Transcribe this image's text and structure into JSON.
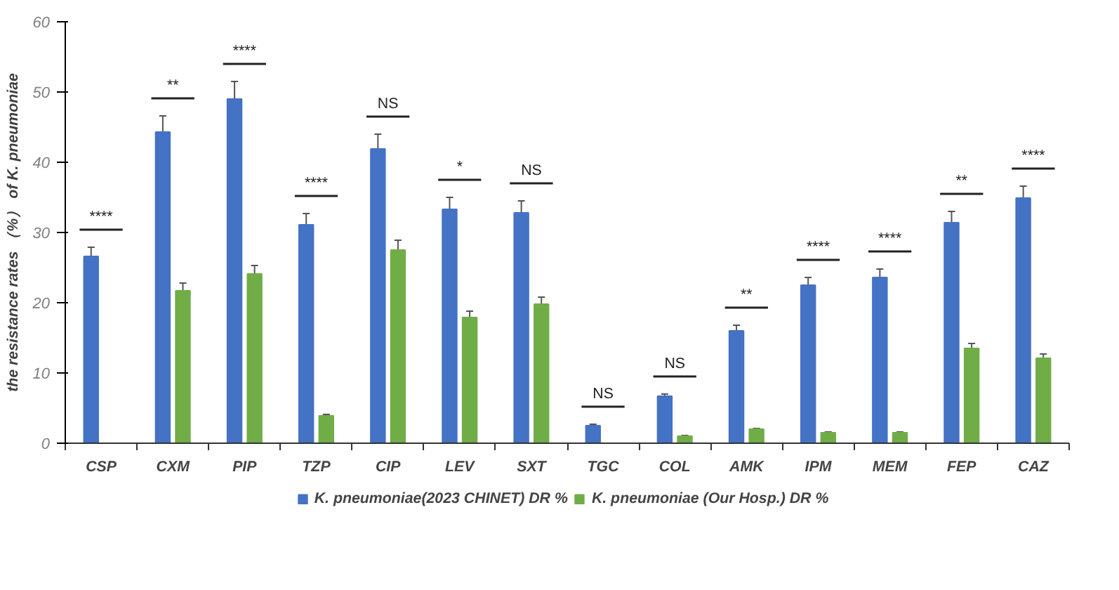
{
  "chart_data": {
    "type": "bar",
    "ylabel": "the resistance rates （%） of K. pneumoniae",
    "categories": [
      "CSP",
      "CXM",
      "PIP",
      "TZP",
      "CIP",
      "LEV",
      "SXT",
      "TGC",
      "COL",
      "AMK",
      "IPM",
      "MEM",
      "FEP",
      "CAZ"
    ],
    "series": [
      {
        "name": "K. pneumoniae(2023 CHINET) DR %",
        "color": "#4472c4",
        "values": [
          26.6,
          44.3,
          49.0,
          31.1,
          41.9,
          33.3,
          32.8,
          2.5,
          6.7,
          16.0,
          22.5,
          23.6,
          31.4,
          34.9
        ],
        "errors": [
          1.3,
          2.3,
          2.5,
          1.6,
          2.1,
          1.7,
          1.7,
          0.2,
          0.3,
          0.8,
          1.1,
          1.2,
          1.6,
          1.7
        ]
      },
      {
        "name": "K. pneumoniae (Our Hosp.) DR %",
        "color": "#70ad47",
        "values": [
          null,
          21.7,
          24.1,
          3.9,
          27.5,
          17.9,
          19.8,
          null,
          1.0,
          2.0,
          1.5,
          1.5,
          13.5,
          12.1
        ],
        "errors": [
          null,
          1.1,
          1.2,
          0.2,
          1.4,
          0.9,
          1.0,
          null,
          0.1,
          0.1,
          0.1,
          0.1,
          0.7,
          0.6
        ]
      }
    ],
    "ylim": [
      0,
      60
    ],
    "yticks": [
      0,
      10,
      20,
      30,
      40,
      50,
      60
    ],
    "grid": false,
    "legend": "bottom",
    "annotations": [
      "****",
      "**",
      "****",
      "****",
      "NS",
      "*",
      "NS",
      "NS",
      "NS",
      "**",
      "****",
      "****",
      "**",
      "****"
    ]
  }
}
